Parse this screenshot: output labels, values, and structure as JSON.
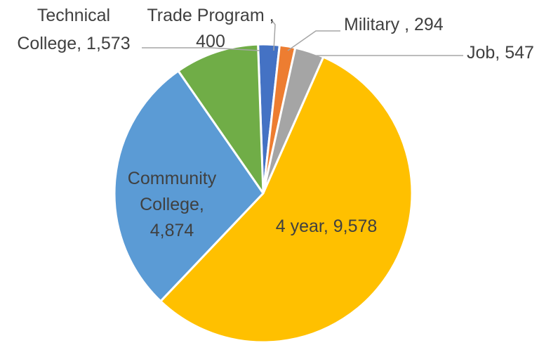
{
  "chart_data": {
    "type": "pie",
    "title": "",
    "slices": [
      {
        "category": "Trade Program",
        "value": 400,
        "color": "#4472C4",
        "label_lines": [
          "Trade Program ,",
          "400"
        ]
      },
      {
        "category": "Military",
        "value": 294,
        "color": "#ED7D31",
        "label_lines": [
          "Military , 294"
        ]
      },
      {
        "category": "Job",
        "value": 547,
        "color": "#A5A5A5",
        "label_lines": [
          "Job, 547"
        ]
      },
      {
        "category": "4 year",
        "value": 9578,
        "color": "#FFC000",
        "label_lines": [
          "4 year, 9,578"
        ]
      },
      {
        "category": "Community College",
        "value": 4874,
        "color": "#5B9BD5",
        "label_lines": [
          "Community",
          "College,",
          "4,874"
        ]
      },
      {
        "category": "Technical College",
        "value": 1573,
        "color": "#70AD47",
        "label_lines": [
          "Technical",
          "College, 1,573"
        ]
      }
    ],
    "legend": "none"
  }
}
